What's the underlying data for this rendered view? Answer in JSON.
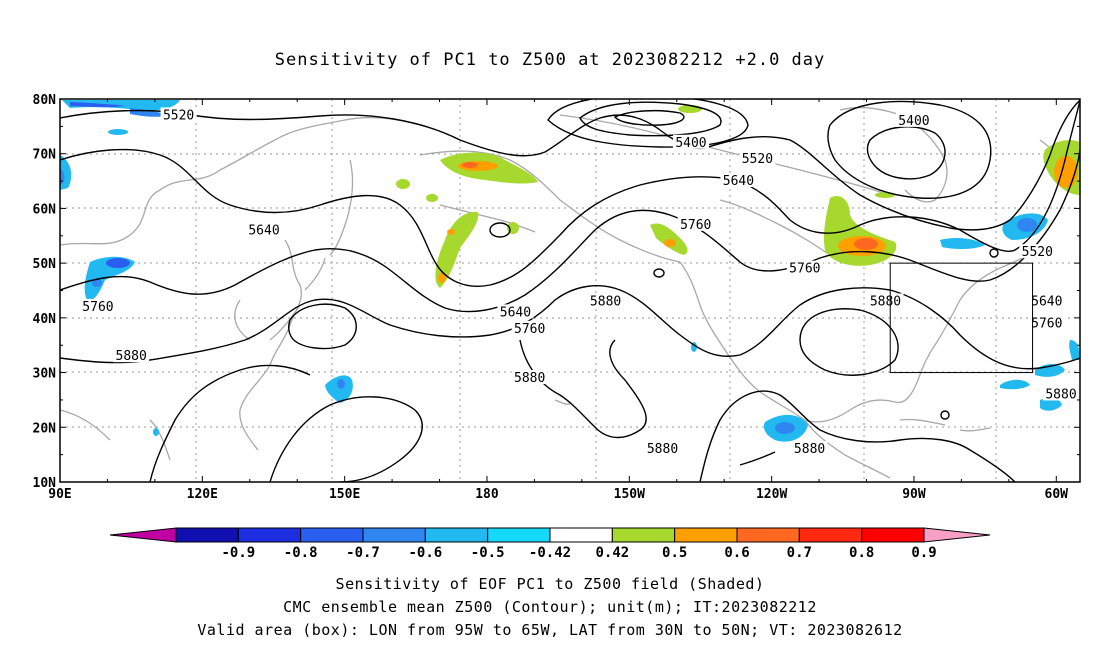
{
  "title": "Sensitivity of PC1 to Z500 at 2023082212 +2.0 day",
  "lat_labels": [
    "80N",
    "70N",
    "60N",
    "50N",
    "40N",
    "30N",
    "20N",
    "10N"
  ],
  "lon_labels": [
    "90E",
    "120E",
    "150E",
    "180",
    "150W",
    "120W",
    "90W",
    "60W"
  ],
  "contour_labels": [
    {
      "text": "5520",
      "lon": 115,
      "lat": 77
    },
    {
      "text": "5400",
      "lon": -137,
      "lat": 72
    },
    {
      "text": "5520",
      "lon": -123,
      "lat": 69
    },
    {
      "text": "5640",
      "lon": -127,
      "lat": 65
    },
    {
      "text": "5760",
      "lon": -136,
      "lat": 57
    },
    {
      "text": "5400",
      "lon": -90,
      "lat": 76
    },
    {
      "text": "5520",
      "lon": -64,
      "lat": 52
    },
    {
      "text": "5640",
      "lon": 133,
      "lat": 56
    },
    {
      "text": "5760",
      "lon": 98,
      "lat": 42
    },
    {
      "text": "5880",
      "lon": 105,
      "lat": 33
    },
    {
      "text": "5640",
      "lon": -174,
      "lat": 41
    },
    {
      "text": "5760",
      "lon": -171,
      "lat": 38
    },
    {
      "text": "5880",
      "lon": -155,
      "lat": 43
    },
    {
      "text": "5880",
      "lon": -171,
      "lat": 29
    },
    {
      "text": "5880",
      "lon": -143,
      "lat": 16
    },
    {
      "text": "5760",
      "lon": -113,
      "lat": 49
    },
    {
      "text": "5880",
      "lon": -96,
      "lat": 43
    },
    {
      "text": "5640",
      "lon": -62,
      "lat": 43
    },
    {
      "text": "5760",
      "lon": -62,
      "lat": 39
    },
    {
      "text": "5880",
      "lon": -59,
      "lat": 26
    },
    {
      "text": "5880",
      "lon": -112,
      "lat": 16
    }
  ],
  "valid_box": {
    "lon_min": -95,
    "lon_max": -65,
    "lat_min": 30,
    "lat_max": 50
  },
  "colorbar": {
    "labels": [
      "-0.9",
      "-0.8",
      "-0.7",
      "-0.6",
      "-0.5",
      "-0.42",
      "0.42",
      "0.5",
      "0.6",
      "0.7",
      "0.8",
      "0.9"
    ],
    "colors": [
      "#c000a0",
      "#1010b0",
      "#1c2ee0",
      "#2a5ef0",
      "#2f86f0",
      "#22b8f0",
      "#16d8f8",
      "#ffffff",
      "#a6d82e",
      "#ffa000",
      "#ff6820",
      "#ff2810",
      "#ff0000",
      "#f6a0c8"
    ]
  },
  "captions": [
    "Sensitivity of EOF PC1 to Z500 field (Shaded)",
    "CMC ensemble mean Z500 (Contour); unit(m); IT:2023082212",
    "Valid area (box): LON from 95W to 65W, LAT from 30N to 50N; VT: 2023082612"
  ]
}
